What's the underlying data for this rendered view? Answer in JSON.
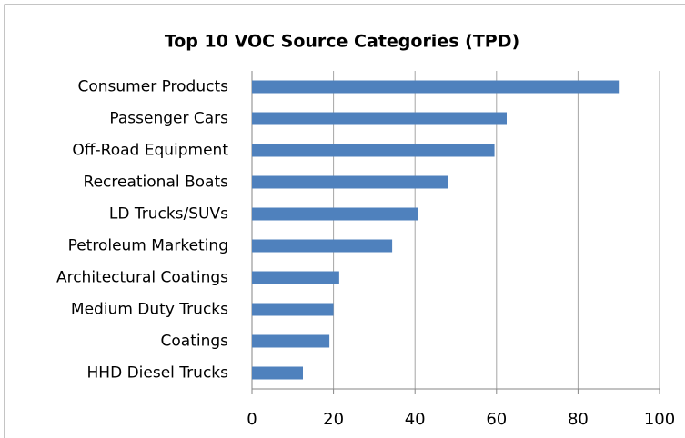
{
  "chart_data": {
    "type": "bar",
    "orientation": "horizontal",
    "title": "Top 10 VOC Source Categories (TPD)",
    "categories": [
      "Consumer Products",
      "Passenger Cars",
      "Off-Road Equipment",
      "Recreational Boats",
      "LD Trucks/SUVs",
      "Petroleum Marketing",
      "Architectural Coatings",
      "Medium Duty Trucks",
      "Coatings",
      "HHD Diesel Trucks"
    ],
    "values": [
      90,
      62.5,
      59.5,
      48.2,
      40.8,
      34.4,
      21.4,
      20,
      19,
      12.5
    ],
    "color": "#4f81bd",
    "xlim": [
      0,
      100
    ],
    "xticks": [
      0,
      20,
      40,
      60,
      80,
      100
    ],
    "grid": true
  }
}
